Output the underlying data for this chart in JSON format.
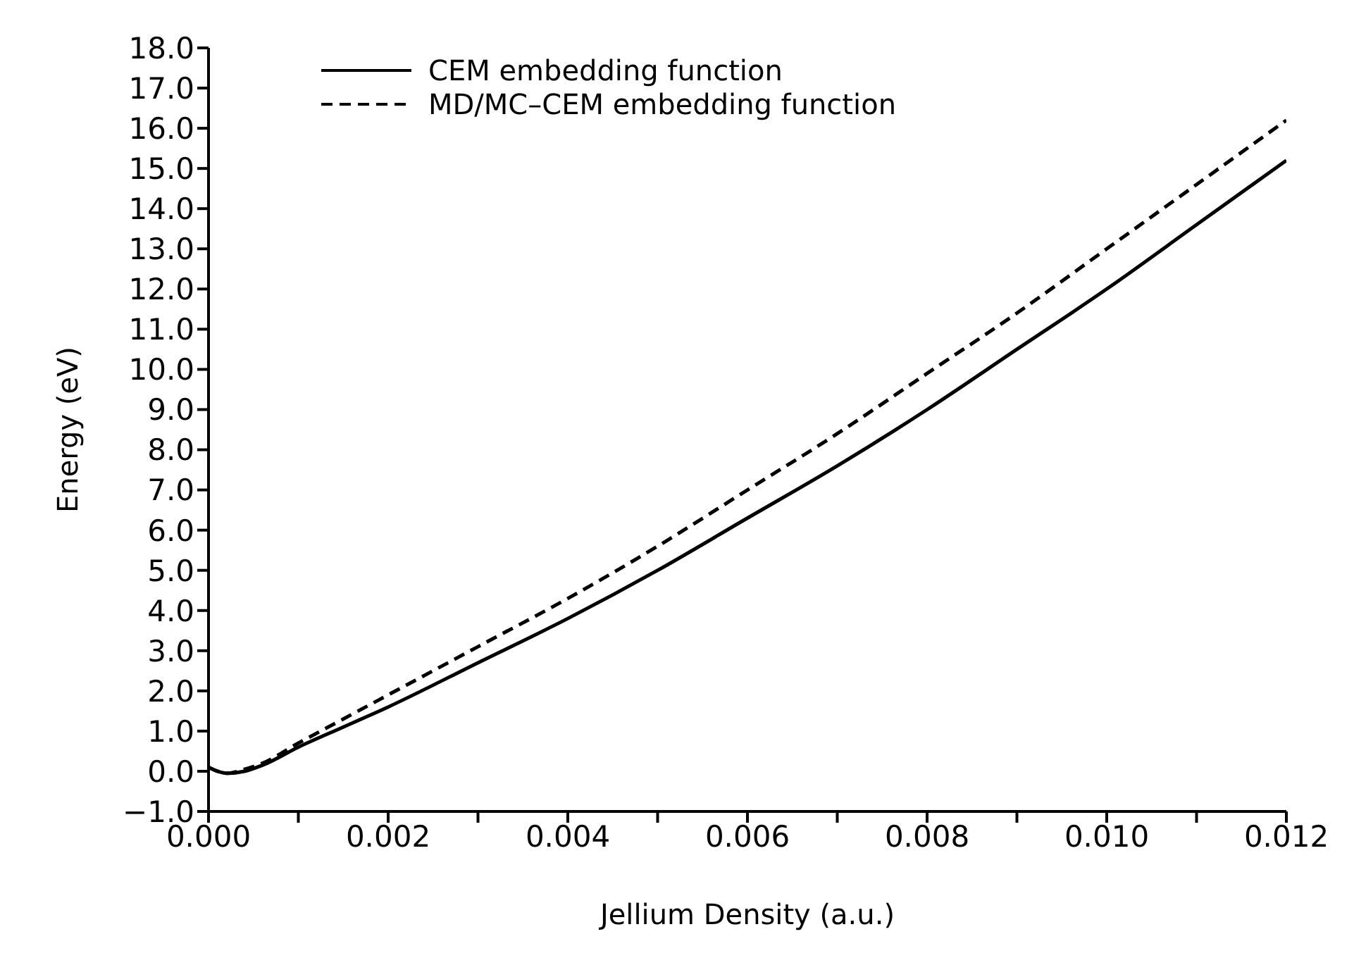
{
  "chart_data": {
    "type": "line",
    "xlabel": "Jellium Density (a.u.)",
    "ylabel": "Energy (eV)",
    "xlim": [
      0,
      0.012
    ],
    "ylim": [
      -1,
      18
    ],
    "xticks": [
      {
        "value": 0,
        "label": "0.000"
      },
      {
        "value": 0.001,
        "label": null
      },
      {
        "value": 0.002,
        "label": "0.002"
      },
      {
        "value": 0.003,
        "label": null
      },
      {
        "value": 0.004,
        "label": "0.004"
      },
      {
        "value": 0.005,
        "label": null
      },
      {
        "value": 0.006,
        "label": "0.006"
      },
      {
        "value": 0.007,
        "label": null
      },
      {
        "value": 0.008,
        "label": "0.008"
      },
      {
        "value": 0.009,
        "label": null
      },
      {
        "value": 0.01,
        "label": "0.010"
      },
      {
        "value": 0.011,
        "label": null
      },
      {
        "value": 0.012,
        "label": "0.012"
      }
    ],
    "yticks": [
      {
        "value": -1,
        "label": "−1.0"
      },
      {
        "value": 0,
        "label": "0.0"
      },
      {
        "value": 1,
        "label": "1.0"
      },
      {
        "value": 2,
        "label": "2.0"
      },
      {
        "value": 3,
        "label": "3.0"
      },
      {
        "value": 4,
        "label": "4.0"
      },
      {
        "value": 5,
        "label": "5.0"
      },
      {
        "value": 6,
        "label": "6.0"
      },
      {
        "value": 7,
        "label": "7.0"
      },
      {
        "value": 8,
        "label": "8.0"
      },
      {
        "value": 9,
        "label": "9.0"
      },
      {
        "value": 10,
        "label": "10.0"
      },
      {
        "value": 11,
        "label": "11.0"
      },
      {
        "value": 12,
        "label": "12.0"
      },
      {
        "value": 13,
        "label": "13.0"
      },
      {
        "value": 14,
        "label": "14.0"
      },
      {
        "value": 15,
        "label": "15.0"
      },
      {
        "value": 16,
        "label": "16.0"
      },
      {
        "value": 17,
        "label": "17.0"
      },
      {
        "value": 18,
        "label": "18.0"
      }
    ],
    "grid": false,
    "legend": "top left",
    "marker": "none",
    "x": [
      0,
      0.0001,
      0.0002,
      0.0004,
      0.0006,
      0.001,
      0.0015,
      0.002,
      0.003,
      0.004,
      0.005,
      0.006,
      0.007,
      0.008,
      0.009,
      0.01,
      0.011,
      0.012
    ],
    "series": [
      {
        "name": "CEM embedding function",
        "color": "#000000",
        "line_style": "solid",
        "values": [
          0.1,
          0.0,
          -0.05,
          0.0,
          0.15,
          0.6,
          1.1,
          1.6,
          2.7,
          3.8,
          5.0,
          6.3,
          7.6,
          9.0,
          10.5,
          12.0,
          13.6,
          15.2
        ]
      },
      {
        "name": "MD/MC–CEM embedding function",
        "color": "#000000",
        "line_style": "dashed",
        "values": [
          0.1,
          0.0,
          -0.05,
          0.05,
          0.2,
          0.7,
          1.3,
          1.9,
          3.1,
          4.3,
          5.6,
          7.0,
          8.4,
          9.9,
          11.4,
          13.0,
          14.6,
          16.2
        ]
      }
    ]
  }
}
